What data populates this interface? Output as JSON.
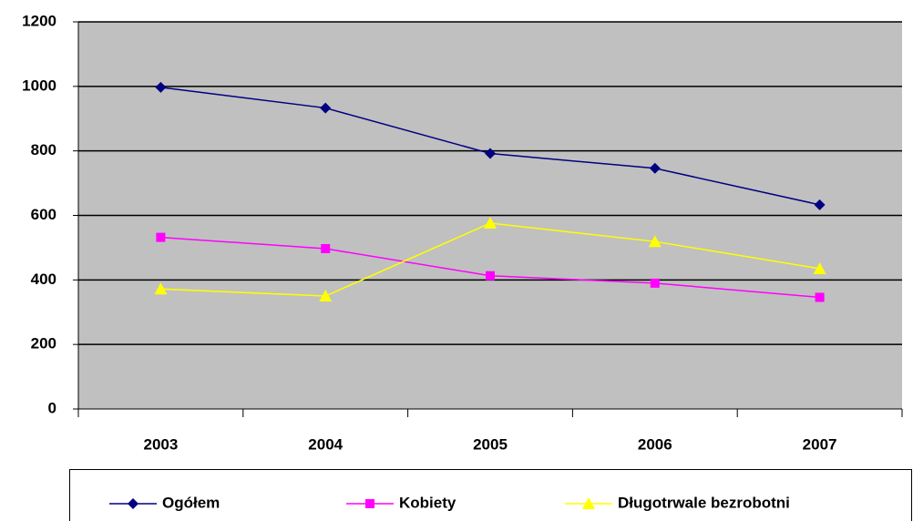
{
  "chart_data": {
    "type": "line",
    "categories": [
      "2003",
      "2004",
      "2005",
      "2006",
      "2007"
    ],
    "series": [
      {
        "name": "Ogółem",
        "color": "#000080",
        "marker": "diamond",
        "values": [
          997,
          933,
          792,
          746,
          633
        ]
      },
      {
        "name": "Kobiety",
        "color": "#ff00ff",
        "marker": "square",
        "values": [
          532,
          497,
          413,
          390,
          346
        ]
      },
      {
        "name": "Długotrwale bezrobotni",
        "color": "#ffff00",
        "marker": "triangle",
        "values": [
          372,
          350,
          576,
          519,
          435
        ]
      }
    ],
    "ylim": [
      0,
      1200
    ],
    "yticks": [
      0,
      200,
      400,
      600,
      800,
      1000,
      1200
    ],
    "grid": true,
    "legend": "bottom"
  }
}
